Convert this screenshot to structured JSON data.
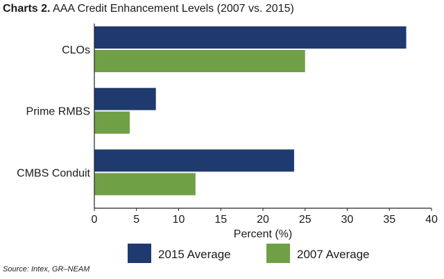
{
  "header": {
    "title_lead": "Charts 2.",
    "title_rest": " AAA Credit Enhancement Levels (2007 vs. 2015)"
  },
  "source": "Source: Intex, GR–NEAM",
  "chart_data": {
    "type": "bar",
    "orientation": "horizontal",
    "categories": [
      "CLOs",
      "Prime RMBS",
      "CMBS Conduit"
    ],
    "series": [
      {
        "name": "2015 Average",
        "color": "#1f3a6e",
        "values": [
          37,
          7.3,
          23.7
        ]
      },
      {
        "name": "2007 Average",
        "color": "#70a046",
        "values": [
          25,
          4.2,
          12
        ]
      }
    ],
    "xlabel": "Percent (%)",
    "xlim": [
      0,
      40
    ],
    "xticks": [
      0,
      5,
      10,
      15,
      20,
      25,
      30,
      35,
      40
    ],
    "grid": false,
    "legend_position": "bottom"
  }
}
